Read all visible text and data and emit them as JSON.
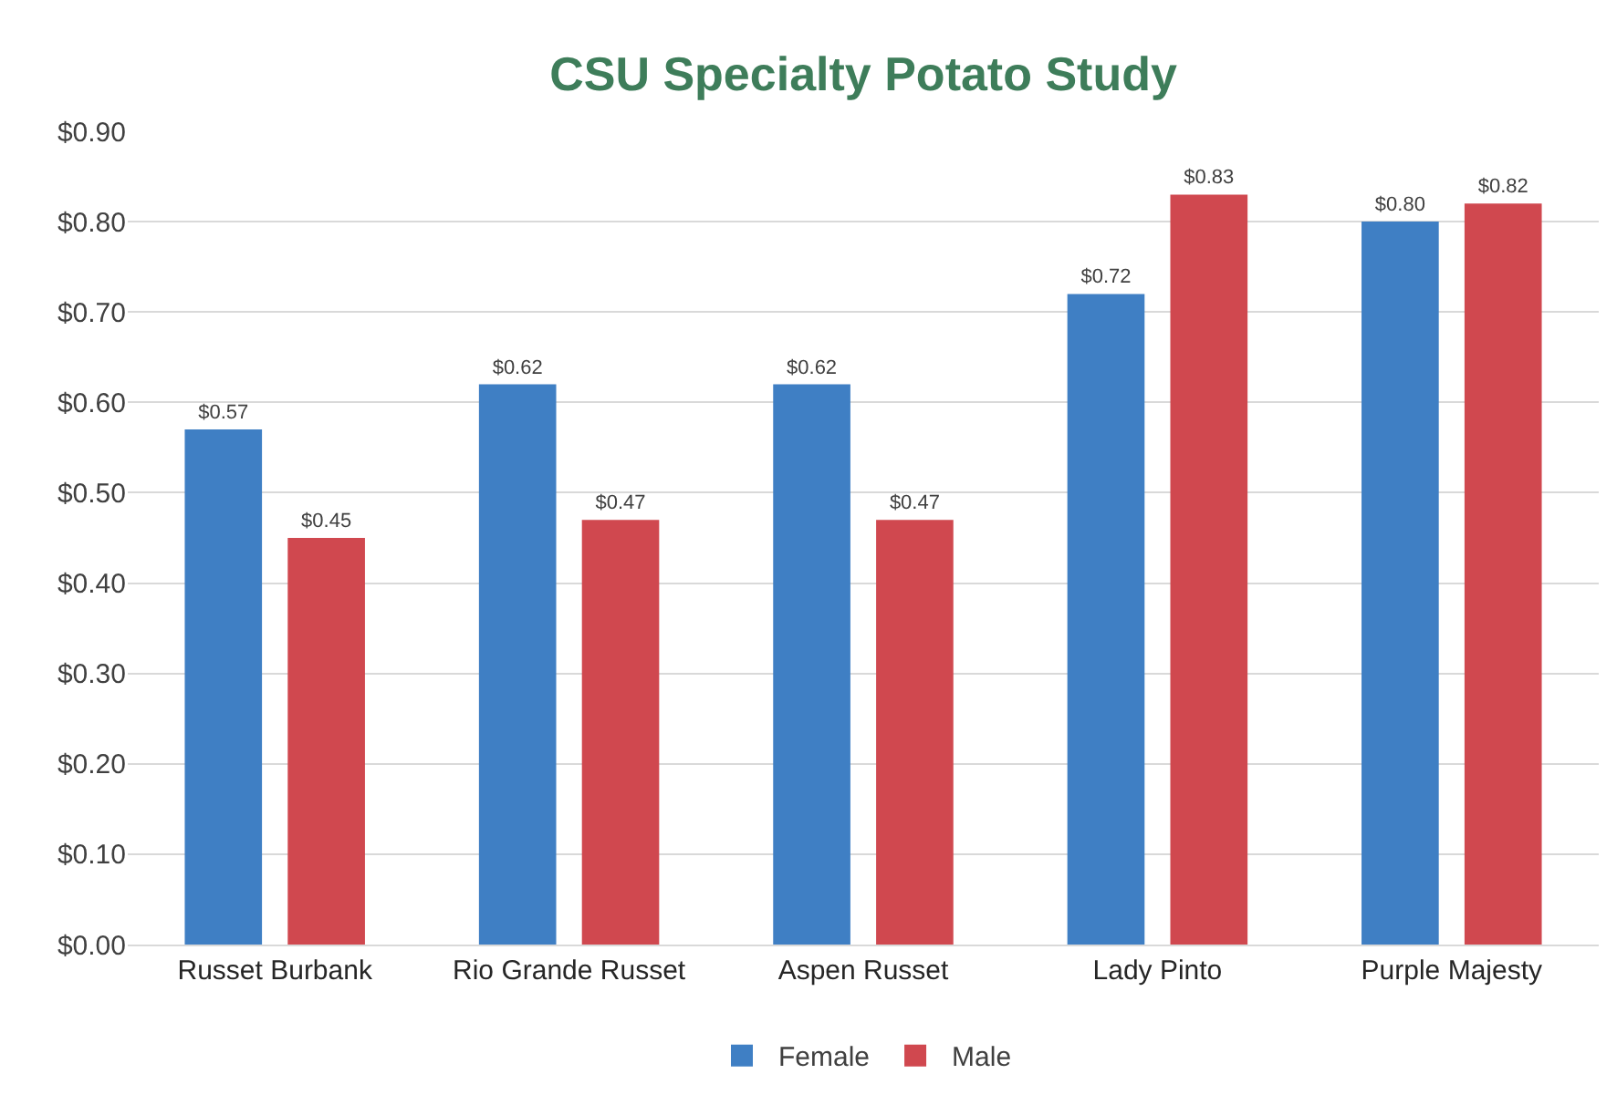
{
  "chart_data": {
    "type": "bar",
    "title": "CSU Specialty Potato Study",
    "categories": [
      "Russet Burbank",
      "Rio Grande Russet",
      "Aspen Russet",
      "Lady Pinto",
      "Purple Majesty"
    ],
    "series": [
      {
        "name": "Female",
        "color": "#3f7fc4",
        "values": [
          0.57,
          0.62,
          0.62,
          0.72,
          0.8
        ],
        "value_labels": [
          "$0.57",
          "$0.62",
          "$0.62",
          "$0.72",
          "$0.80"
        ]
      },
      {
        "name": "Male",
        "color": "#d0484f",
        "values": [
          0.45,
          0.47,
          0.47,
          0.83,
          0.82
        ],
        "value_labels": [
          "$0.45",
          "$0.47",
          "$0.47",
          "$0.83",
          "$0.82"
        ]
      }
    ],
    "ylim": [
      0,
      0.9
    ],
    "yticks": [
      {
        "value": 0,
        "label": "$0.00"
      },
      {
        "value": 0.1,
        "label": "$0.10"
      },
      {
        "value": 0.2,
        "label": "$0.20"
      },
      {
        "value": 0.3,
        "label": "$0.30"
      },
      {
        "value": 0.4,
        "label": "$0.40"
      },
      {
        "value": 0.5,
        "label": "$0.50"
      },
      {
        "value": 0.6,
        "label": "$0.60"
      },
      {
        "value": 0.7,
        "label": "$0.70"
      },
      {
        "value": 0.8,
        "label": "$0.80"
      },
      {
        "value": 0.9,
        "label": "$0.90"
      }
    ],
    "grid": "y",
    "legend": "bottom"
  }
}
